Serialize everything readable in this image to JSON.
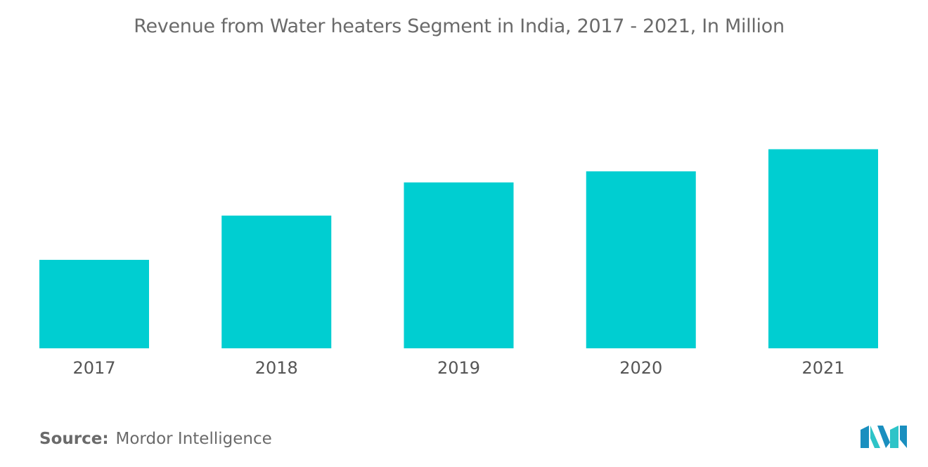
{
  "chart_data": {
    "type": "bar",
    "title": "Revenue from Water heaters Segment in India, 2017 - 2021, In Million",
    "categories": [
      "2017",
      "2018",
      "2019",
      "2020",
      "2021"
    ],
    "values": [
      40,
      60,
      75,
      80,
      90
    ],
    "xlabel": "",
    "ylabel": "",
    "ylim": [
      0,
      100
    ],
    "grid": false,
    "bar_color": "#00CED1"
  },
  "footer": {
    "source_label": "Source:",
    "source_value": "Mordor Intelligence"
  },
  "logo": {
    "icon": "mordor-intelligence-logo",
    "colors": [
      "#1a8fbf",
      "#2ec4c8"
    ]
  }
}
